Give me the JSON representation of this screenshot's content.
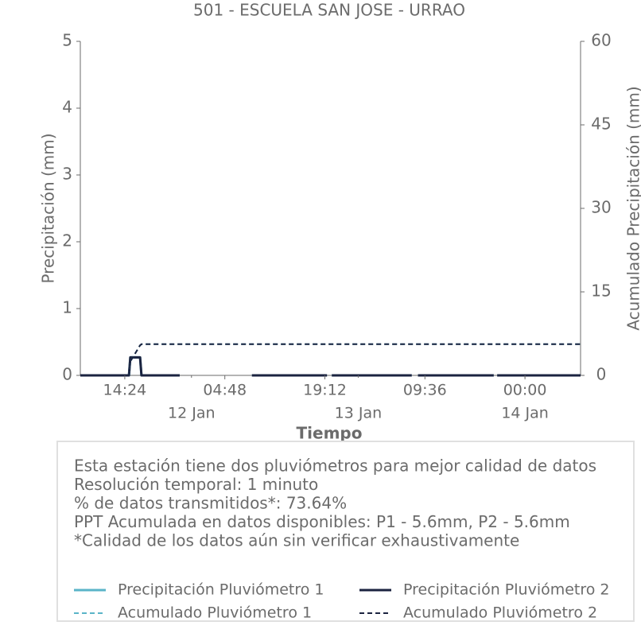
{
  "chart_data": {
    "type": "line",
    "title": "501 - ESCUELA SAN JOSE - URRAO",
    "x_label": "Tiempo",
    "y_label": "Precipitación (mm)",
    "y2_label": "Acumulado Precipitación (mm)",
    "x": [
      8,
      15,
      15.2,
      16.6,
      16.8,
      22.3,
      27,
      32.7,
      43.5,
      43.9,
      44.2,
      55.7,
      56.1,
      56.6,
      67.5,
      67.8,
      68,
      80
    ],
    "series": [
      {
        "name": "Precipitación Pluviómetro 1",
        "color": "#5ab4c8",
        "linestyle": "solid",
        "axis": "y",
        "values": [
          0,
          0,
          0.27,
          0.27,
          0,
          0,
          null,
          0,
          0,
          null,
          0,
          0,
          null,
          0,
          0,
          null,
          0,
          0
        ]
      },
      {
        "name": "Precipitación Pluviómetro 2",
        "color": "#1b2340",
        "linestyle": "solid",
        "axis": "y",
        "values": [
          0,
          0,
          0.27,
          0.27,
          0,
          0,
          null,
          0,
          0,
          null,
          0,
          0,
          null,
          0,
          0,
          null,
          0,
          0
        ]
      },
      {
        "name": "Acumulado Pluviómetro 1",
        "color": "#5ab4c8",
        "linestyle": "dashed",
        "axis": "y2",
        "values": [
          0,
          0,
          2.5,
          5.4,
          5.6,
          5.6,
          5.6,
          5.6,
          5.6,
          5.6,
          5.6,
          5.6,
          5.6,
          5.6,
          5.6,
          5.6,
          5.6,
          5.6
        ]
      },
      {
        "name": "Acumulado Pluviómetro 2",
        "color": "#1b2340",
        "linestyle": "dashed",
        "axis": "y2",
        "values": [
          0,
          0,
          2.5,
          5.4,
          5.6,
          5.6,
          5.6,
          5.6,
          5.6,
          5.6,
          5.6,
          5.6,
          5.6,
          5.6,
          5.6,
          5.6,
          5.6,
          5.6
        ]
      }
    ],
    "xlim": [
      8,
      80
    ],
    "xticks": [
      {
        "value": 14.4,
        "label": "14:24"
      },
      {
        "value": 28.8,
        "label": "04:48"
      },
      {
        "value": 43.2,
        "label": "19:12"
      },
      {
        "value": 57.6,
        "label": "09:36"
      },
      {
        "value": 72,
        "label": "00:00"
      }
    ],
    "date_ticks": [
      {
        "value": 24,
        "label": "12 Jan"
      },
      {
        "value": 48,
        "label": "13 Jan"
      },
      {
        "value": 72,
        "label": "14 Jan"
      }
    ],
    "ylim": [
      0,
      5
    ],
    "yticks": [
      0,
      1,
      2,
      3,
      4,
      5
    ],
    "y2lim": [
      0,
      60
    ],
    "y2ticks": [
      0,
      15,
      30,
      45,
      60
    ],
    "grid": false,
    "legend": "bottom",
    "notes": [
      "Esta estación tiene dos pluviómetros para mejor calidad de datos",
      "Resolución temporal: 1 minuto",
      "% de datos transmitidos*: 73.64%",
      "PPT Acumulada en datos disponibles: P1 - 5.6mm, P2 - 5.6mm",
      "*Calidad de los datos aún sin verificar exhaustivamente"
    ]
  }
}
